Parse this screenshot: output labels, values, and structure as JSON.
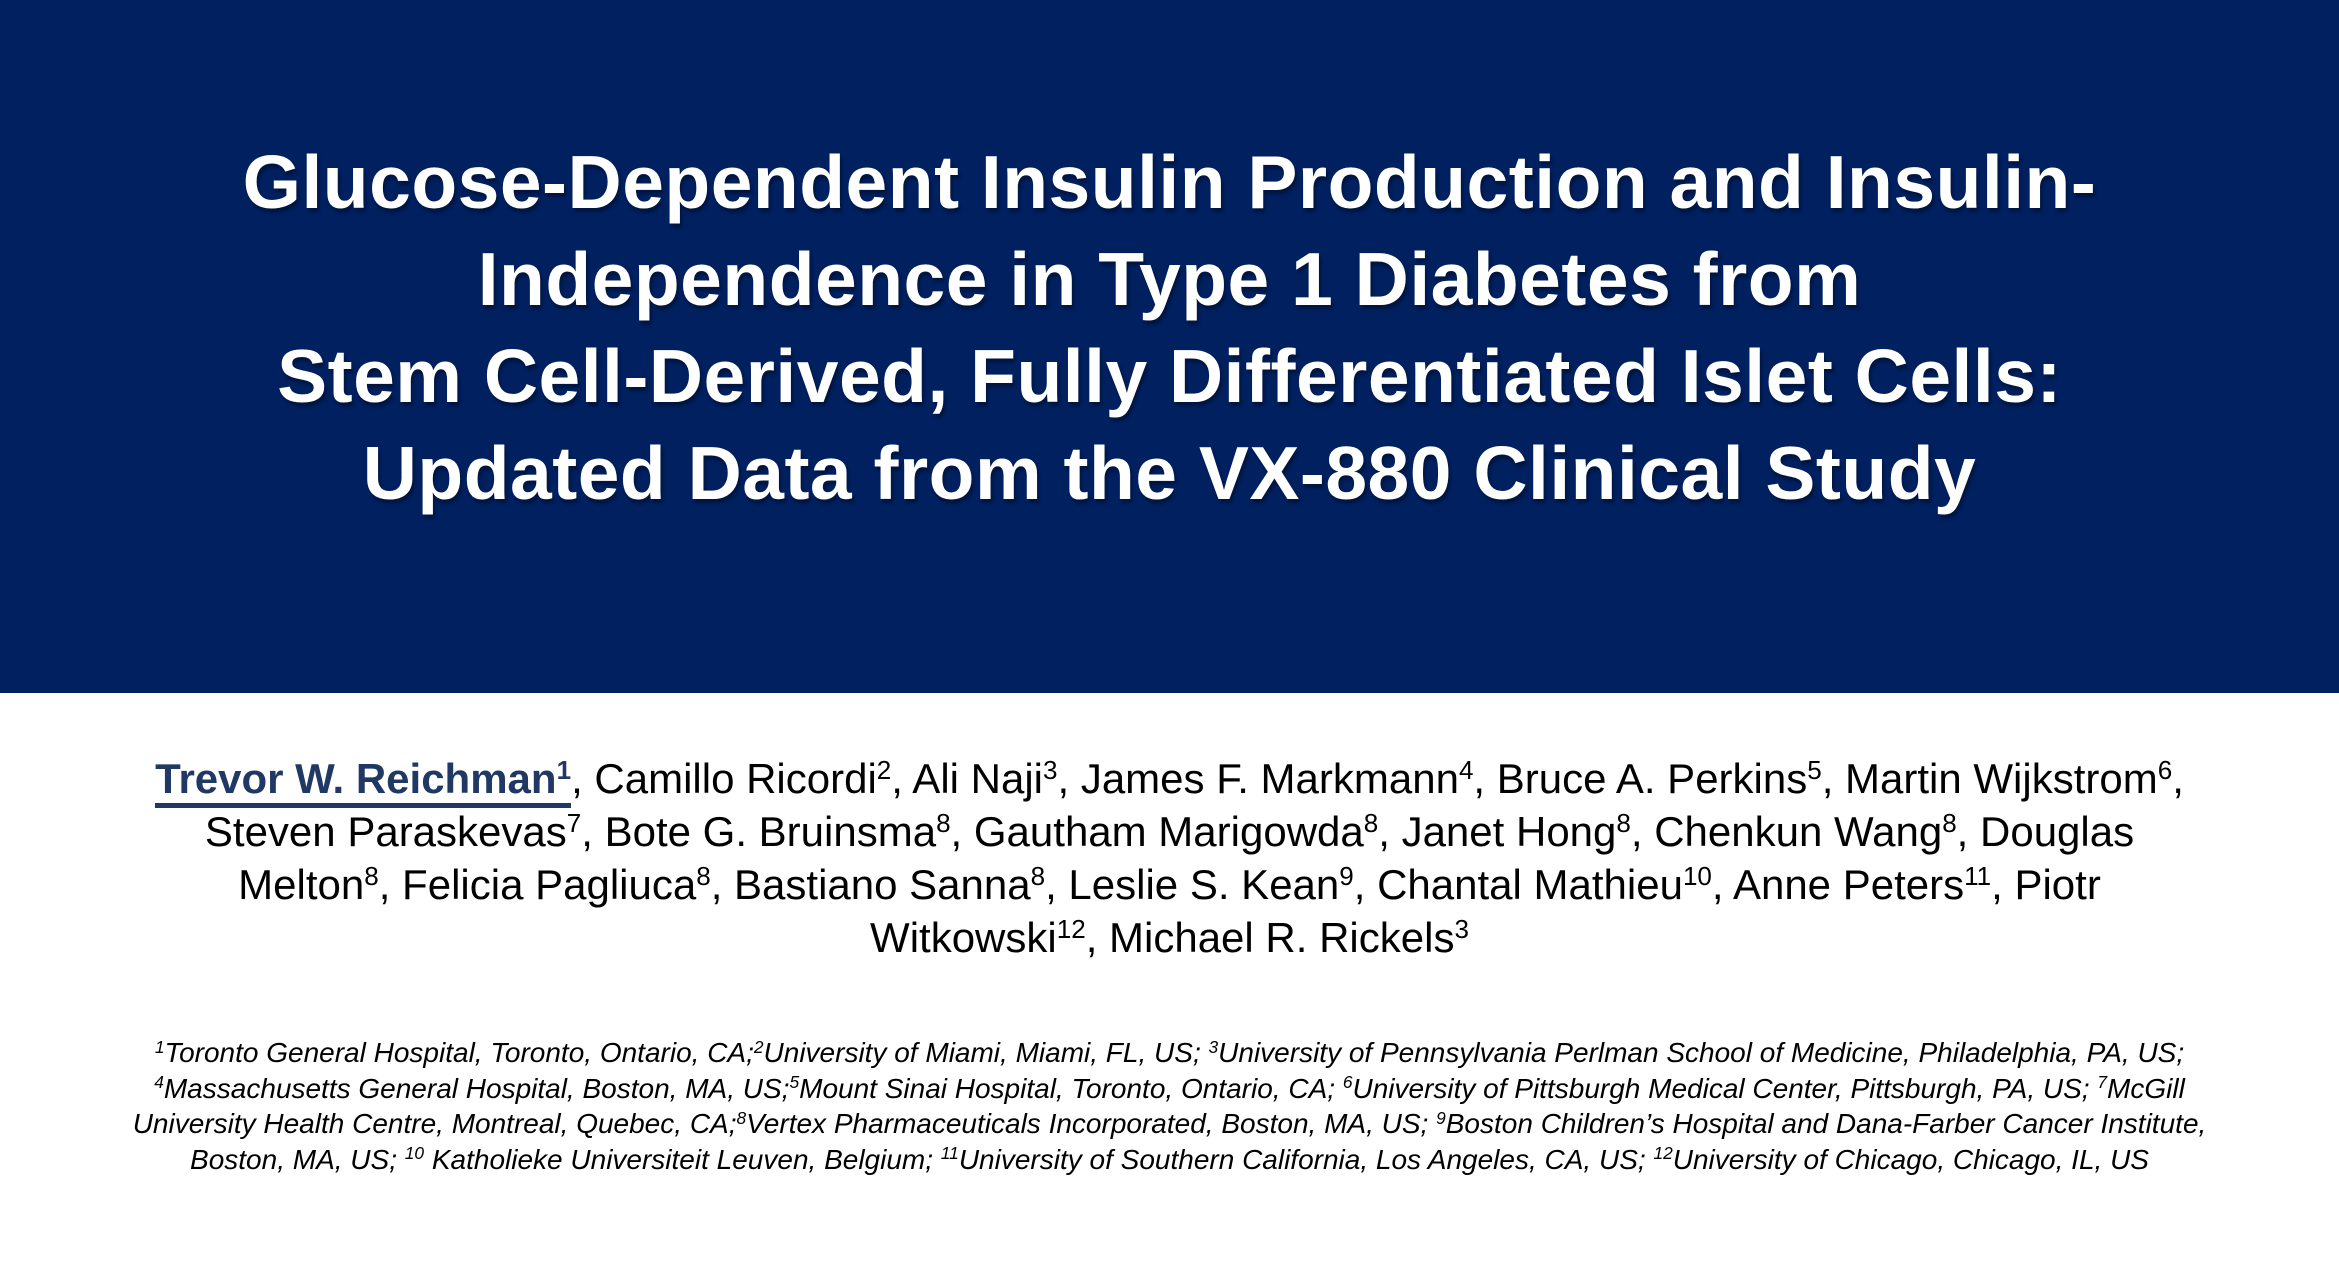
{
  "slide": {
    "banner_color": "#002060",
    "title_color": "#ffffff",
    "lead_author_color": "#1f3864",
    "body_text_color": "#000000"
  },
  "title": {
    "lines": [
      "Glucose-Dependent Insulin Production and Insulin-",
      "Independence in Type 1 Diabetes from",
      "Stem Cell-Derived, Fully Differentiated Islet Cells:",
      "Updated Data from the VX-880 Clinical Study"
    ]
  },
  "authors": {
    "lines": [
      [
        {
          "t": "Trevor W. Reichman",
          "s": "1",
          "lead": true
        },
        {
          "t": ", Camillo Ricordi",
          "s": "2"
        },
        {
          "t": ", Ali Naji",
          "s": "3"
        },
        {
          "t": ", James F. Markmann",
          "s": "4"
        },
        {
          "t": ", Bruce A. Perkins",
          "s": "5"
        },
        {
          "t": ", Martin Wijkstrom",
          "s": "6"
        },
        {
          "t": ","
        }
      ],
      [
        {
          "t": "Steven Paraskevas",
          "s": "7"
        },
        {
          "t": ", Bote G. Bruinsma",
          "s": "8"
        },
        {
          "t": ", Gautham Marigowda",
          "s": "8"
        },
        {
          "t": ", Janet Hong",
          "s": "8"
        },
        {
          "t": ", Chenkun Wang",
          "s": "8"
        },
        {
          "t": ", Douglas"
        }
      ],
      [
        {
          "t": "Melton",
          "s": "8"
        },
        {
          "t": ", Felicia Pagliuca",
          "s": "8"
        },
        {
          "t": ", Bastiano Sanna",
          "s": "8"
        },
        {
          "t": ", Leslie S. Kean",
          "s": "9"
        },
        {
          "t": ", Chantal Mathieu",
          "s": "10"
        },
        {
          "t": ", Anne Peters",
          "s": "11"
        },
        {
          "t": ", Piotr"
        }
      ],
      [
        {
          "t": "Witkowski",
          "s": "12"
        },
        {
          "t": ", Michael R. Rickels",
          "s": "3"
        }
      ]
    ]
  },
  "affiliations": {
    "lines": [
      [
        {
          "s": "1",
          "t": "Toronto General Hospital, Toronto, Ontario, CA;"
        },
        {
          "s": "2",
          "t": "University of Miami, Miami, FL, US; "
        },
        {
          "s": "3",
          "t": "University of Pennsylvania Perlman School of Medicine, Philadelphia, PA, US;"
        }
      ],
      [
        {
          "s": "4",
          "t": "Massachusetts General Hospital, Boston, MA, US;"
        },
        {
          "s": "5",
          "t": "Mount Sinai Hospital, Toronto, Ontario, CA; "
        },
        {
          "s": "6",
          "t": "University of Pittsburgh Medical Center, Pittsburgh, PA, US; "
        },
        {
          "s": "7",
          "t": "McGill"
        }
      ],
      [
        {
          "t": "University Health Centre, Montreal, Quebec, CA;"
        },
        {
          "s": "8",
          "t": "Vertex Pharmaceuticals Incorporated, Boston, MA, US; "
        },
        {
          "s": "9",
          "t": "Boston Children’s Hospital and Dana-Farber Cancer Institute,"
        }
      ],
      [
        {
          "t": "Boston, MA, US; "
        },
        {
          "s": "10",
          "t": " Katholieke Universiteit Leuven, Belgium; "
        },
        {
          "s": "11",
          "t": "University of Southern California, Los Angeles, CA, US; "
        },
        {
          "s": "12",
          "t": "University of Chicago, Chicago, IL, US"
        }
      ]
    ]
  }
}
